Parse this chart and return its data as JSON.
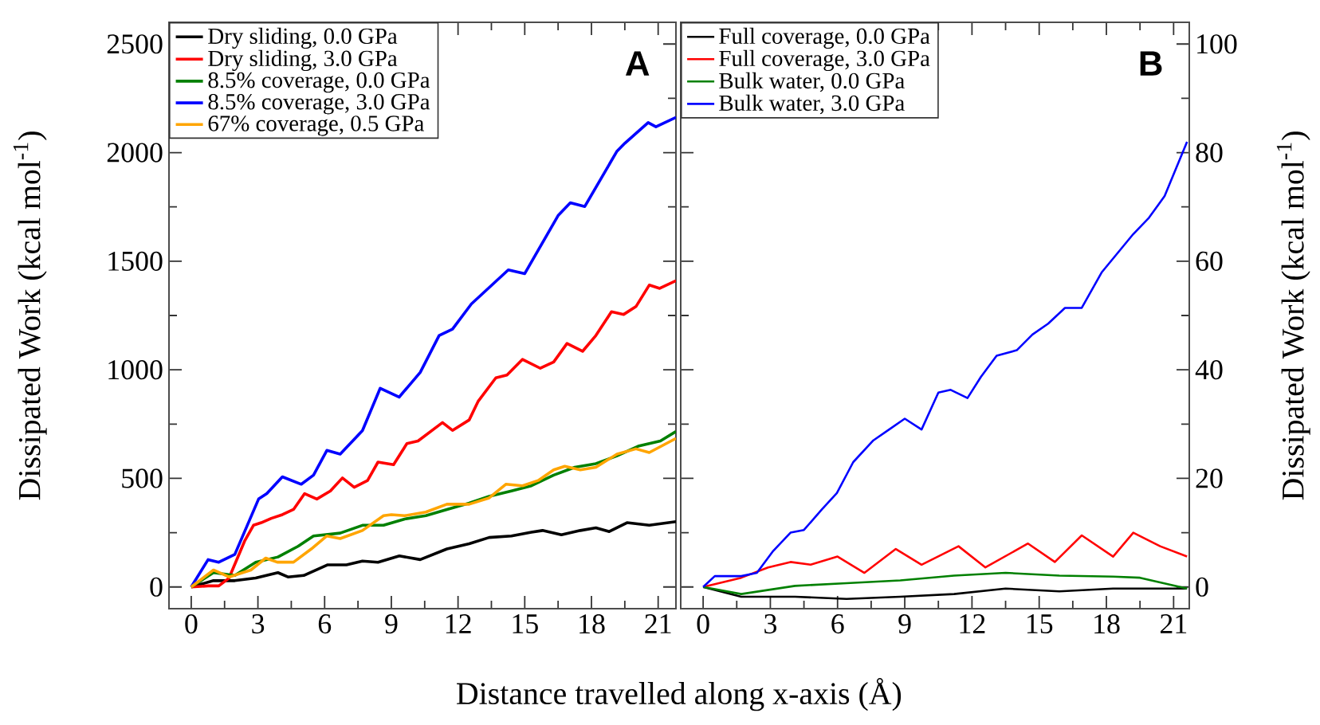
{
  "chart_data": [
    {
      "type": "line",
      "ylabel": "Dissipated Work (kcal mol$^{-1}$)",
      "xlabel": "Distance travelled along x-axis (Å)",
      "annotations": [
        "**A**"
      ],
      "legend": "top left",
      "xlim": [
        -1,
        21.8
      ],
      "xticks": [
        0,
        3,
        6,
        9,
        12,
        15,
        18,
        21
      ],
      "ylim": [
        -100,
        2600
      ],
      "yticks": [
        0,
        500,
        1000,
        1500,
        2000,
        2500
      ],
      "series": [
        {
          "name": "Dry sliding, 0.0 GPa",
          "color": "#000000",
          "x": [
            0,
            1.0,
            1.96,
            2.9,
            3.9,
            4.35,
            5.06,
            6.14,
            6.98,
            7.7,
            8.4,
            9.36,
            10.3,
            11.5,
            12.5,
            13.4,
            14.4,
            15.3,
            15.8,
            16.65,
            17.5,
            18.2,
            18.8,
            19.6,
            20.6,
            21.8
          ],
          "values": [
            0,
            29,
            29,
            41,
            66,
            46,
            53,
            102,
            102,
            119,
            114,
            143,
            126,
            175,
            199,
            228,
            235,
            252,
            260,
            240,
            260,
            272,
            255,
            296,
            284,
            301
          ]
        },
        {
          "name": "Dry sliding, 3.0 GPa",
          "color": "#ff0000",
          "x": [
            0,
            0.76,
            1.24,
            1.7,
            2.4,
            2.8,
            3.15,
            3.6,
            4.1,
            4.6,
            5.1,
            5.65,
            6.26,
            6.8,
            7.33,
            7.93,
            8.4,
            9.1,
            9.7,
            10.2,
            11.3,
            11.75,
            12.5,
            12.9,
            13.7,
            14.2,
            14.9,
            15.7,
            16.3,
            16.9,
            17.6,
            18.2,
            18.9,
            19.45,
            20.0,
            20.6,
            21.07,
            21.8
          ],
          "values": [
            0,
            5,
            5,
            41,
            211,
            284,
            296,
            316,
            333,
            357,
            430,
            405,
            442,
            502,
            459,
            490,
            575,
            563,
            660,
            672,
            757,
            721,
            769,
            854,
            963,
            976,
            1048,
            1007,
            1036,
            1121,
            1085,
            1158,
            1267,
            1255,
            1291,
            1390,
            1375,
            1410
          ]
        },
        {
          "name": "8.5% coverage, 0.0 GPa",
          "color": "#008000",
          "x": [
            0,
            1.0,
            1.96,
            2.9,
            3.9,
            4.8,
            5.5,
            6.7,
            7.7,
            8.65,
            9.6,
            10.55,
            11.5,
            12.5,
            13.4,
            14.4,
            15.3,
            16.3,
            17.25,
            18.2,
            19.15,
            20.1,
            21.1,
            21.8
          ],
          "values": [
            0,
            66,
            53,
            114,
            138,
            187,
            235,
            248,
            284,
            284,
            313,
            328,
            357,
            386,
            417,
            442,
            466,
            515,
            551,
            568,
            604,
            648,
            672,
            716
          ]
        },
        {
          "name": "8.5% coverage, 3.0 GPa",
          "color": "#0000ff",
          "x": [
            0,
            0.76,
            1.24,
            1.96,
            3.03,
            3.4,
            4.1,
            4.95,
            5.5,
            6.1,
            6.7,
            7.7,
            8.5,
            9.35,
            10.3,
            11.15,
            11.75,
            12.6,
            14.26,
            15.0,
            16.5,
            17.05,
            17.7,
            19.15,
            19.5,
            20.55,
            20.9,
            21.8
          ],
          "values": [
            0,
            126,
            114,
            150,
            405,
            430,
            507,
            473,
            515,
            629,
            612,
            720,
            915,
            874,
            988,
            1158,
            1187,
            1303,
            1460,
            1443,
            1710,
            1769,
            1752,
            2007,
            2043,
            2138,
            2119,
            2162
          ]
        },
        {
          "name": "67% coverage, 0.5 GPa",
          "color": "#ffa500",
          "x": [
            0,
            1.0,
            1.7,
            2.68,
            3.35,
            3.87,
            4.6,
            5.4,
            6.1,
            6.7,
            7.7,
            8.65,
            9.0,
            9.6,
            10.55,
            11.5,
            12.5,
            13.4,
            14.15,
            14.9,
            15.6,
            16.3,
            16.8,
            17.5,
            18.2,
            19.15,
            20.0,
            20.6,
            21.8
          ],
          "values": [
            0,
            78,
            46,
            78,
            133,
            114,
            114,
            175,
            235,
            223,
            260,
            328,
            333,
            328,
            345,
            381,
            381,
            410,
            473,
            466,
            490,
            539,
            556,
            539,
            551,
            612,
            636,
            619,
            684
          ]
        }
      ]
    },
    {
      "type": "line",
      "y2label": "Dissipated Work (kcal mol$^{-1}$)",
      "annotations": [
        "**B**"
      ],
      "legend": "top left",
      "xlim": [
        -1,
        21.7
      ],
      "xticks": [
        0,
        3,
        6,
        9,
        12,
        15,
        18,
        21
      ],
      "y2lim": [
        -4,
        104
      ],
      "y2ticks": [
        0,
        20,
        40,
        60,
        80,
        100
      ],
      "series": [
        {
          "name": "Full coverage, 0.0 GPa",
          "color": "#000000",
          "axis": "y2",
          "x": [
            0,
            1.7,
            4.1,
            6.4,
            8.8,
            11.2,
            13.5,
            15.9,
            18.3,
            21.6
          ],
          "values": [
            0,
            -1.8,
            -1.8,
            -2.2,
            -1.8,
            -1.3,
            -0.3,
            -0.8,
            -0.3,
            -0.3
          ]
        },
        {
          "name": "Full coverage, 3.0 GPa",
          "color": "#ff0000",
          "axis": "y2",
          "x": [
            0,
            0.5,
            1.7,
            2.9,
            3.9,
            4.8,
            6.0,
            7.2,
            8.6,
            9.75,
            11.4,
            12.6,
            14.5,
            15.7,
            16.9,
            18.3,
            19.2,
            20.4,
            21.6
          ],
          "values": [
            0,
            null,
            1.7,
            3.6,
            4.6,
            4.1,
            5.6,
            2.6,
            7.0,
            4.1,
            7.5,
            3.6,
            8.0,
            4.6,
            9.5,
            5.6,
            10,
            7.5,
            5.6
          ]
        },
        {
          "name": "Bulk water, 0.0 GPa",
          "color": "#008000",
          "axis": "y2",
          "x": [
            0,
            1.7,
            4.1,
            6.4,
            8.8,
            11.2,
            13.5,
            15.9,
            18.3,
            19.5,
            21.6
          ],
          "values": [
            0,
            -1.3,
            0.2,
            0.7,
            1.2,
            2.1,
            2.6,
            2.1,
            1.9,
            1.7,
            -0.3
          ]
        },
        {
          "name": "Bulk water, 3.0 GPa",
          "color": "#0000ff",
          "axis": "y2",
          "x": [
            0,
            0.52,
            1.7,
            2.4,
            3.1,
            3.9,
            4.5,
            5.3,
            5.97,
            6.7,
            7.6,
            8.3,
            9.0,
            9.75,
            10.5,
            11.05,
            11.8,
            12.4,
            13.1,
            14.0,
            14.7,
            15.4,
            16.15,
            16.9,
            17.8,
            18.5,
            19.2,
            19.9,
            20.6,
            21.6
          ],
          "values": [
            0,
            2,
            2,
            2.6,
            6.5,
            10,
            10.5,
            14.3,
            17.3,
            23,
            27,
            29,
            31,
            29,
            35.8,
            36.3,
            34.8,
            38.7,
            42.6,
            43.6,
            46.5,
            48.5,
            51.4,
            51.4,
            58,
            61.5,
            65,
            68,
            72,
            82
          ]
        }
      ]
    }
  ]
}
